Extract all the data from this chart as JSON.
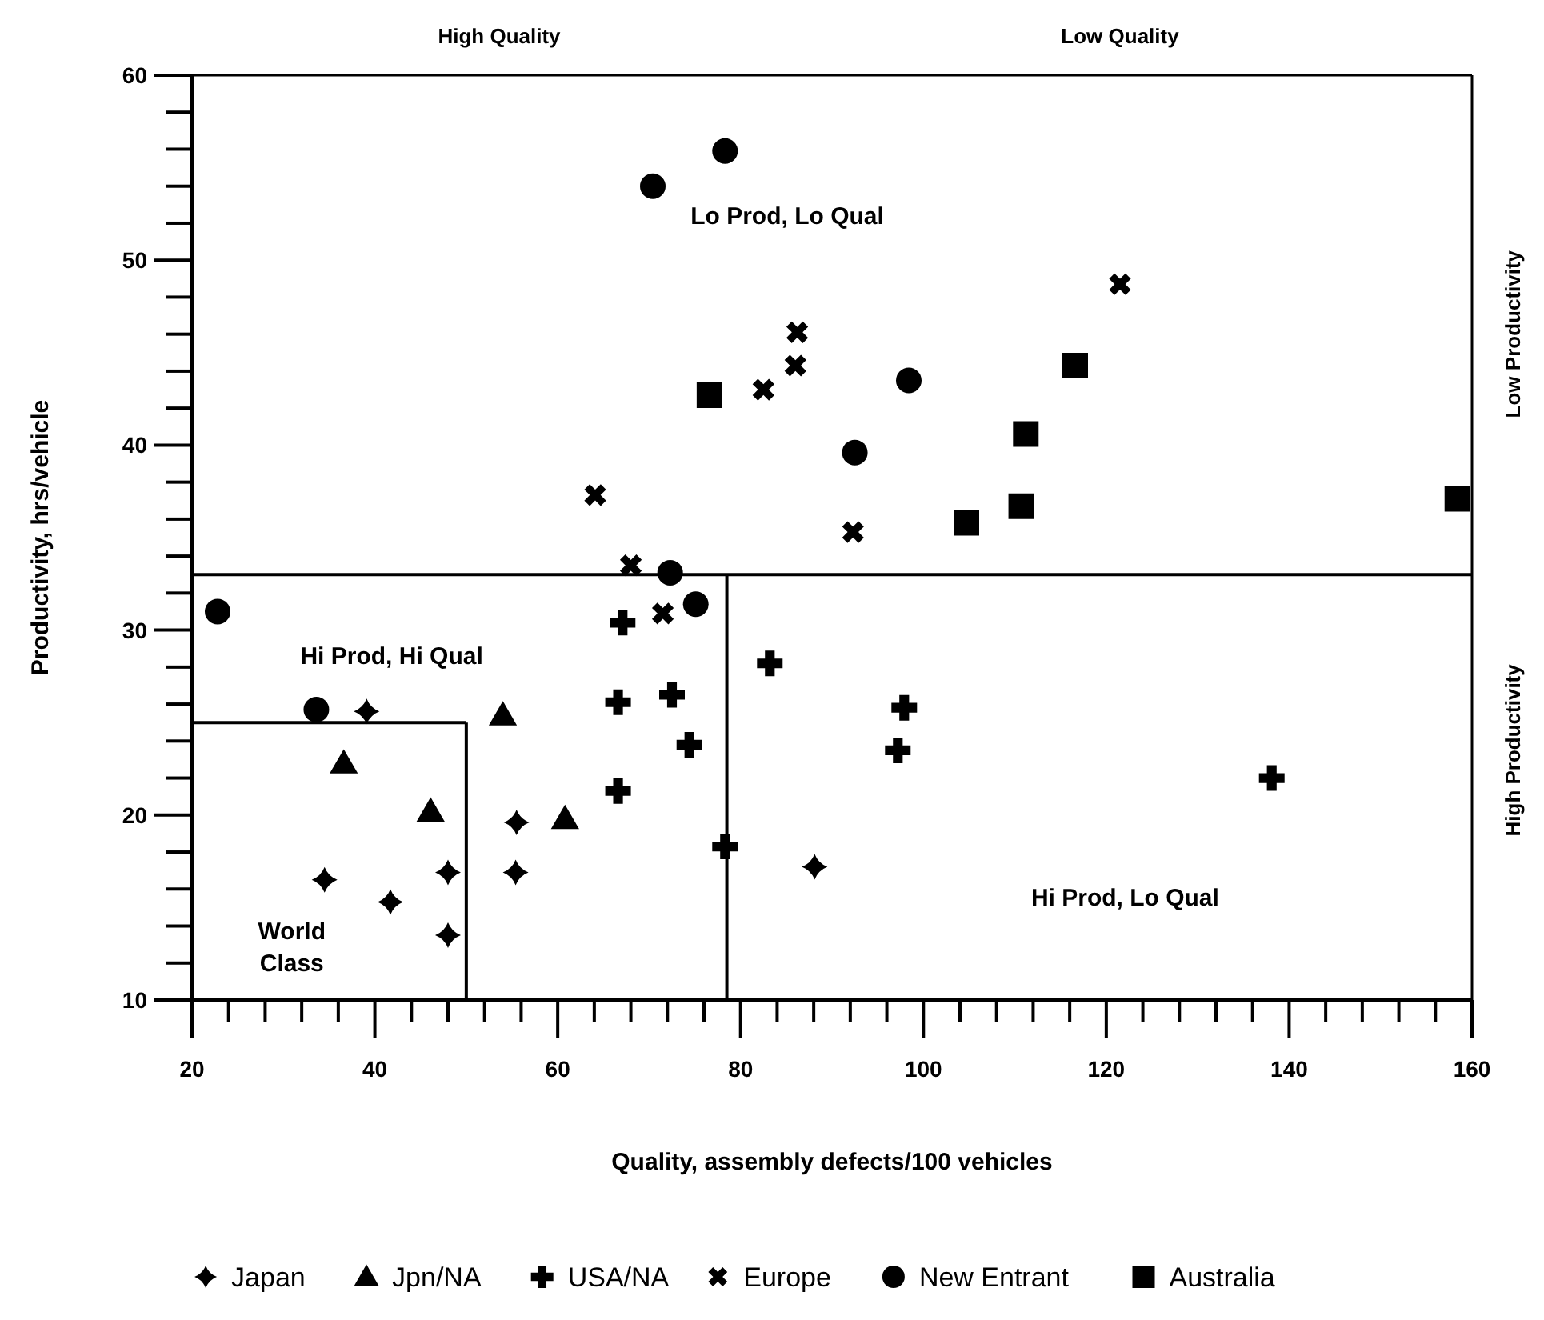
{
  "chart_data": {
    "type": "scatter",
    "xlabel": "Quality, assembly defects/100 vehicles",
    "ylabel": "Productivity, hrs/vehicle",
    "xlim": [
      20,
      160
    ],
    "ylim": [
      10,
      60
    ],
    "xticks": [
      20,
      {
        "value": 24,
        "label": null
      },
      {
        "value": 28,
        "label": null
      },
      {
        "value": 32,
        "label": null
      },
      {
        "value": 36,
        "label": null
      },
      40,
      {
        "value": 44,
        "label": null
      },
      {
        "value": 48,
        "label": null
      },
      {
        "value": 52,
        "label": null
      },
      {
        "value": 56,
        "label": null
      },
      60,
      {
        "value": 64,
        "label": null
      },
      {
        "value": 68,
        "label": null
      },
      {
        "value": 72,
        "label": null
      },
      {
        "value": 76,
        "label": null
      },
      80,
      {
        "value": 84,
        "label": null
      },
      {
        "value": 88,
        "label": null
      },
      {
        "value": 92,
        "label": null
      },
      {
        "value": 96,
        "label": null
      },
      100,
      {
        "value": 104,
        "label": null
      },
      {
        "value": 108,
        "label": null
      },
      {
        "value": 112,
        "label": null
      },
      {
        "value": 116,
        "label": null
      },
      120,
      {
        "value": 124,
        "label": null
      },
      {
        "value": 128,
        "label": null
      },
      {
        "value": 132,
        "label": null
      },
      {
        "value": 136,
        "label": null
      },
      140,
      {
        "value": 144,
        "label": null
      },
      {
        "value": 148,
        "label": null
      },
      {
        "value": 152,
        "label": null
      },
      {
        "value": 156,
        "label": null
      },
      160
    ],
    "yticks": [
      10,
      {
        "value": 12,
        "label": null
      },
      {
        "value": 14,
        "label": null
      },
      {
        "value": 16,
        "label": null
      },
      {
        "value": 18,
        "label": null
      },
      20,
      {
        "value": 22,
        "label": null
      },
      {
        "value": 24,
        "label": null
      },
      {
        "value": 26,
        "label": null
      },
      {
        "value": 28,
        "label": null
      },
      30,
      {
        "value": 32,
        "label": null
      },
      {
        "value": 34,
        "label": null
      },
      {
        "value": 36,
        "label": null
      },
      {
        "value": 38,
        "label": null
      },
      40,
      {
        "value": 42,
        "label": null
      },
      {
        "value": 44,
        "label": null
      },
      {
        "value": 46,
        "label": null
      },
      {
        "value": 48,
        "label": null
      },
      50,
      {
        "value": 52,
        "label": null
      },
      {
        "value": 54,
        "label": null
      },
      {
        "value": 56,
        "label": null
      },
      {
        "value": 58,
        "label": null
      },
      60
    ],
    "ref_lines": [
      {
        "axis": "y",
        "value": 33,
        "color": "#000000"
      },
      {
        "axis": "x",
        "value": 78.5,
        "color": "#000000"
      },
      {
        "axis": "y",
        "value": 25,
        "color": "#000000"
      },
      {
        "axis": "x",
        "value": 50,
        "color": "#000000"
      }
    ],
    "annotations": [
      "High Quality",
      "Low Quality",
      "Low Productivity",
      "High Productivity",
      "Lo Prod, Lo Qual",
      "Hi Prod, Hi Qual",
      "Hi Prod, Lo Qual",
      "World\nClass"
    ],
    "legend": "bottom",
    "grid": false,
    "series": [
      {
        "name": "Japan",
        "color": "#000000",
        "marker": "star",
        "x": [
          34.5,
          39.1,
          41.7,
          48.0,
          48.0,
          55.5,
          55.4,
          88.1
        ],
        "values": [
          16.5,
          25.6,
          15.3,
          16.9,
          13.5,
          19.6,
          16.9,
          17.2
        ]
      },
      {
        "name": "Jpn/NA",
        "color": "#000000",
        "marker": "triangle",
        "x": [
          36.6,
          46.1,
          54.0,
          60.8
        ],
        "values": [
          22.8,
          20.2,
          25.4,
          19.8
        ]
      },
      {
        "name": "USA/NA",
        "color": "#000000",
        "marker": "cross",
        "x": [
          67.1,
          66.6,
          72.5,
          74.4,
          66.6,
          78.3,
          83.2,
          97.9,
          97.2,
          138.1
        ],
        "values": [
          30.4,
          26.1,
          26.5,
          23.8,
          21.3,
          18.3,
          28.2,
          25.8,
          23.5,
          22.0
        ]
      },
      {
        "name": "Europe",
        "color": "#000000",
        "marker": "x",
        "x": [
          64.1,
          68.0,
          71.5,
          82.5,
          86.0,
          86.2,
          92.3,
          121.5
        ],
        "values": [
          37.3,
          33.5,
          30.9,
          43.0,
          44.3,
          46.1,
          35.3,
          48.7
        ]
      },
      {
        "name": "New Entrant",
        "color": "#000000",
        "marker": "circle",
        "x": [
          22.8,
          33.6,
          72.3,
          75.1,
          70.4,
          78.3,
          98.4,
          92.5
        ],
        "values": [
          31.0,
          25.7,
          33.1,
          31.4,
          54.0,
          55.9,
          43.5,
          39.6
        ]
      },
      {
        "name": "Australia",
        "color": "#000000",
        "marker": "square",
        "x": [
          76.6,
          116.6,
          111.2,
          110.7,
          104.7,
          158.4
        ],
        "values": [
          42.7,
          44.3,
          40.6,
          36.7,
          35.8,
          37.1
        ]
      }
    ]
  }
}
